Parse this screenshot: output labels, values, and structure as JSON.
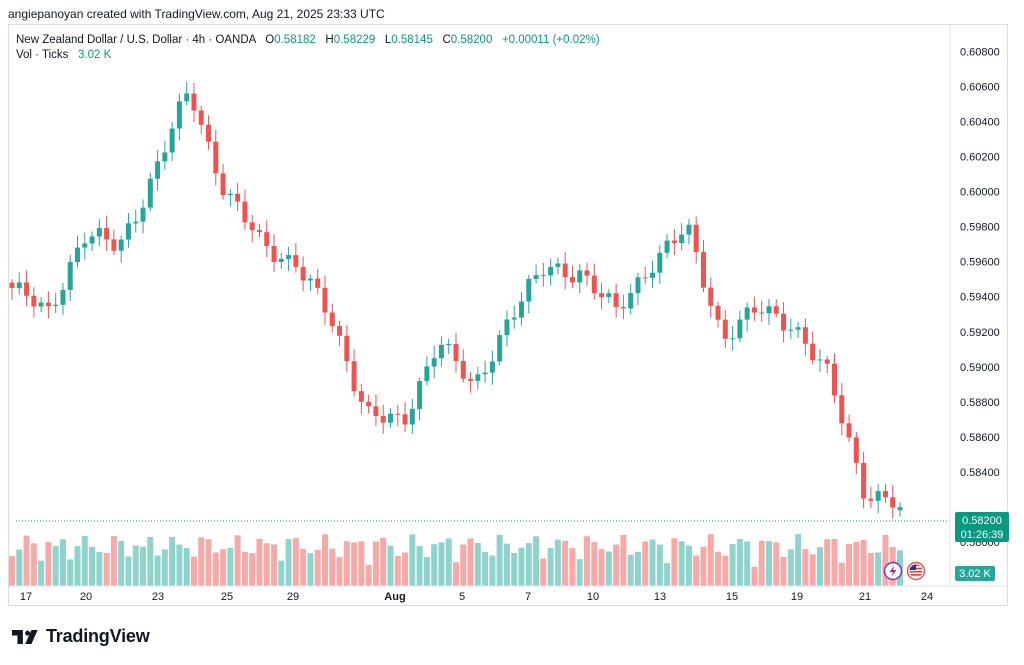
{
  "header": {
    "credit": "angiepanoyan created with TradingView.com, Aug 21, 2025 23:33 UTC"
  },
  "legend": {
    "symbol": "New Zealand Dollar / U.S. Dollar · 4h · OANDA",
    "o_label": "O",
    "o": "0.58182",
    "h_label": "H",
    "h": "0.58229",
    "l_label": "L",
    "l": "0.58145",
    "c_label": "C",
    "c": "0.58200",
    "change": "+0.00011 (+0.02%)",
    "vol_label": "Vol · Ticks",
    "vol_value": "3.02 K"
  },
  "price_axis": {
    "ticks": [
      "0.60800",
      "0.60600",
      "0.60400",
      "0.60200",
      "0.60000",
      "0.59800",
      "0.59600",
      "0.59400",
      "0.59200",
      "0.59000",
      "0.58800",
      "0.58600",
      "0.58400",
      "0.58000"
    ],
    "current_price": "0.58200",
    "countdown": "01:26:39",
    "volume_badge": "3.02 K"
  },
  "time_axis": {
    "labels": [
      "17",
      "20",
      "23",
      "25",
      "29",
      "Aug",
      "5",
      "7",
      "10",
      "13",
      "15",
      "19",
      "21",
      "24"
    ]
  },
  "colors": {
    "up": "#26a69a",
    "down": "#ef5350",
    "up_vol": "#8fd4cc",
    "down_vol": "#f6a9a7",
    "price_line": "#089981"
  },
  "logo": {
    "text": "TradingView"
  },
  "chart_data": {
    "type": "candlestick",
    "title": "New Zealand Dollar / U.S. Dollar · 4h · OANDA",
    "ylim": [
      0.5775,
      0.6095
    ],
    "close_anchors": [
      [
        "Jul 17",
        0.5945
      ],
      [
        "Jul 18",
        0.593
      ],
      [
        "Jul 21",
        0.5975
      ],
      [
        "Jul 22",
        0.5968
      ],
      [
        "Jul 23",
        0.601
      ],
      [
        "Jul 24",
        0.6058
      ],
      [
        "Jul 25",
        0.6
      ],
      [
        "Jul 28",
        0.597
      ],
      [
        "Jul 29",
        0.596
      ],
      [
        "Jul 30",
        0.5925
      ],
      [
        "Jul 31",
        0.5875
      ],
      [
        "Aug 1",
        0.5865
      ],
      [
        "Aug 4",
        0.5918
      ],
      [
        "Aug 5",
        0.5885
      ],
      [
        "Aug 6",
        0.593
      ],
      [
        "Aug 7",
        0.5955
      ],
      [
        "Aug 8",
        0.5955
      ],
      [
        "Aug 11",
        0.593
      ],
      [
        "Aug 12",
        0.596
      ],
      [
        "Aug 13",
        0.5978
      ],
      [
        "Aug 14",
        0.5918
      ],
      [
        "Aug 15",
        0.5932
      ],
      [
        "Aug 18",
        0.5925
      ],
      [
        "Aug 19",
        0.5893
      ],
      [
        "Aug 20",
        0.583
      ],
      [
        "Aug 21",
        0.582
      ]
    ],
    "last_candle": {
      "open": 0.58182,
      "high": 0.58229,
      "low": 0.58145,
      "close": 0.582
    }
  }
}
